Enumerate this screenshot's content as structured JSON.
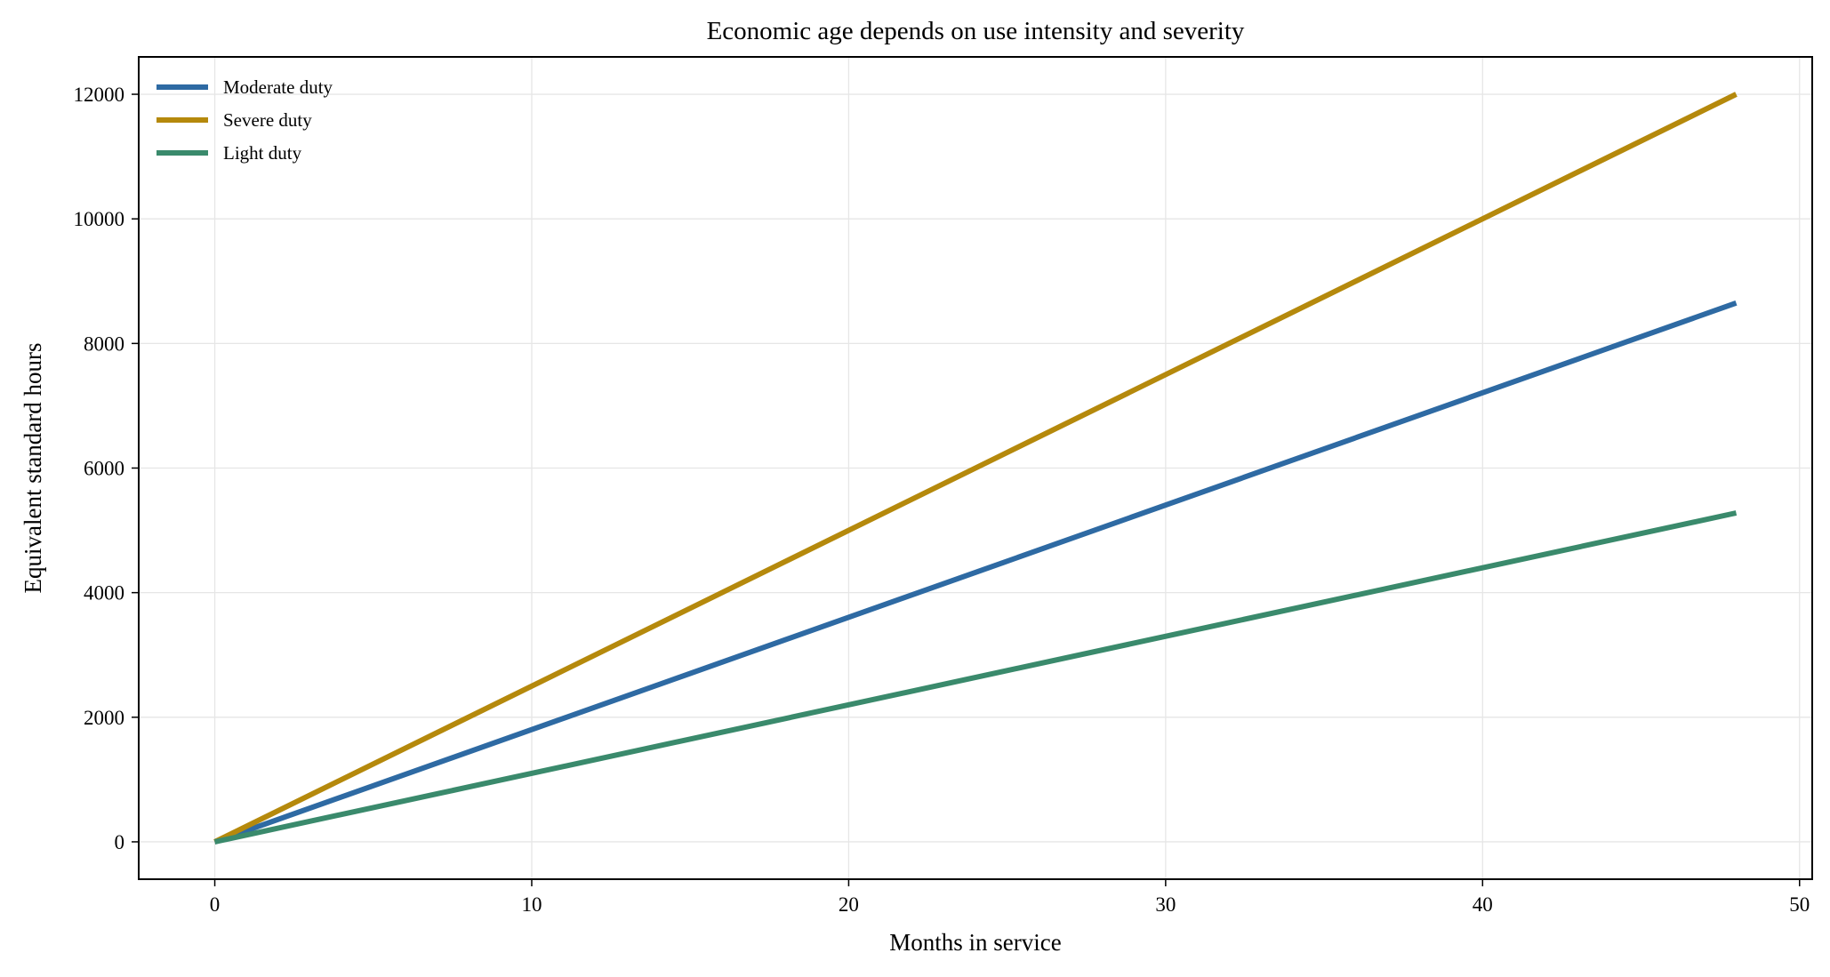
{
  "chart_data": {
    "type": "line",
    "title": "Economic age depends on use intensity and severity",
    "xlabel": "Months in service",
    "ylabel": "Equivalent standard hours",
    "xlim": [
      -2.4,
      50.4
    ],
    "ylim": [
      -600,
      12600
    ],
    "xticks": [
      0,
      10,
      20,
      30,
      40,
      50
    ],
    "yticks": [
      0,
      2000,
      4000,
      6000,
      8000,
      10000,
      12000
    ],
    "grid": true,
    "legend_position": "top-left",
    "x": [
      0,
      48
    ],
    "series": [
      {
        "name": "Moderate duty",
        "color": "#2e6aa3",
        "values": [
          0,
          8650
        ]
      },
      {
        "name": "Severe duty",
        "color": "#b5890c",
        "values": [
          0,
          12000
        ]
      },
      {
        "name": "Light duty",
        "color": "#3a8a6c",
        "values": [
          0,
          5280
        ]
      }
    ]
  }
}
